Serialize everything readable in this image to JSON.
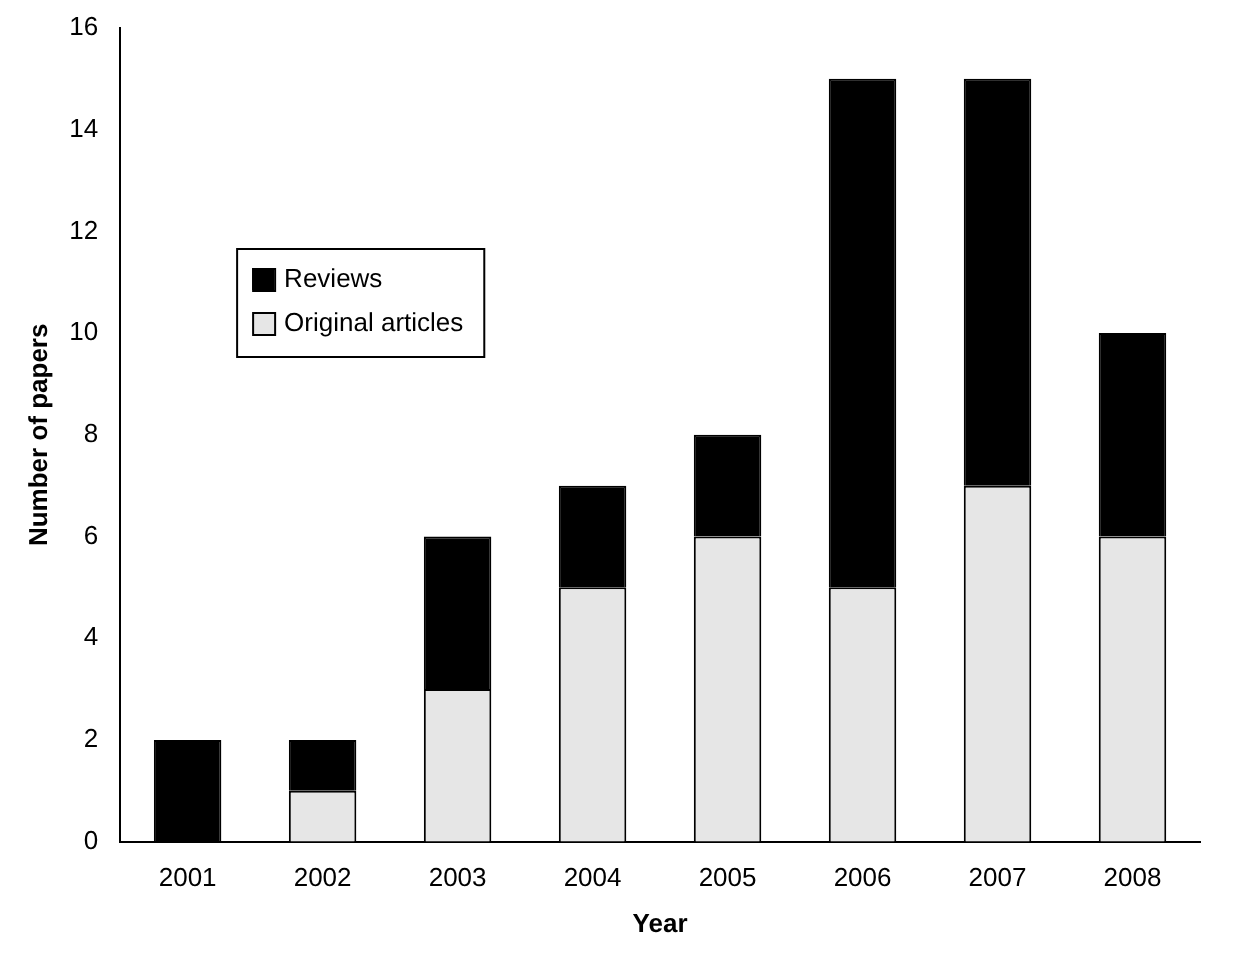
{
  "chart_data": {
    "type": "bar",
    "xlabel": "Year",
    "ylabel": "Number of papers",
    "categories": [
      "2001",
      "2002",
      "2003",
      "2004",
      "2005",
      "2006",
      "2007",
      "2008"
    ],
    "series": [
      {
        "name": "Original articles",
        "color": "#e6e6e6",
        "values": [
          0,
          1,
          3,
          5,
          6,
          5,
          7,
          6
        ]
      },
      {
        "name": "Reviews",
        "color": "#000000",
        "values": [
          2,
          1,
          3,
          2,
          2,
          10,
          8,
          4
        ]
      }
    ],
    "stacked": true,
    "ylim": [
      0,
      16
    ],
    "yticks": [
      0,
      2,
      4,
      6,
      8,
      10,
      12,
      14,
      16
    ],
    "grid": false,
    "legend": "top left"
  }
}
